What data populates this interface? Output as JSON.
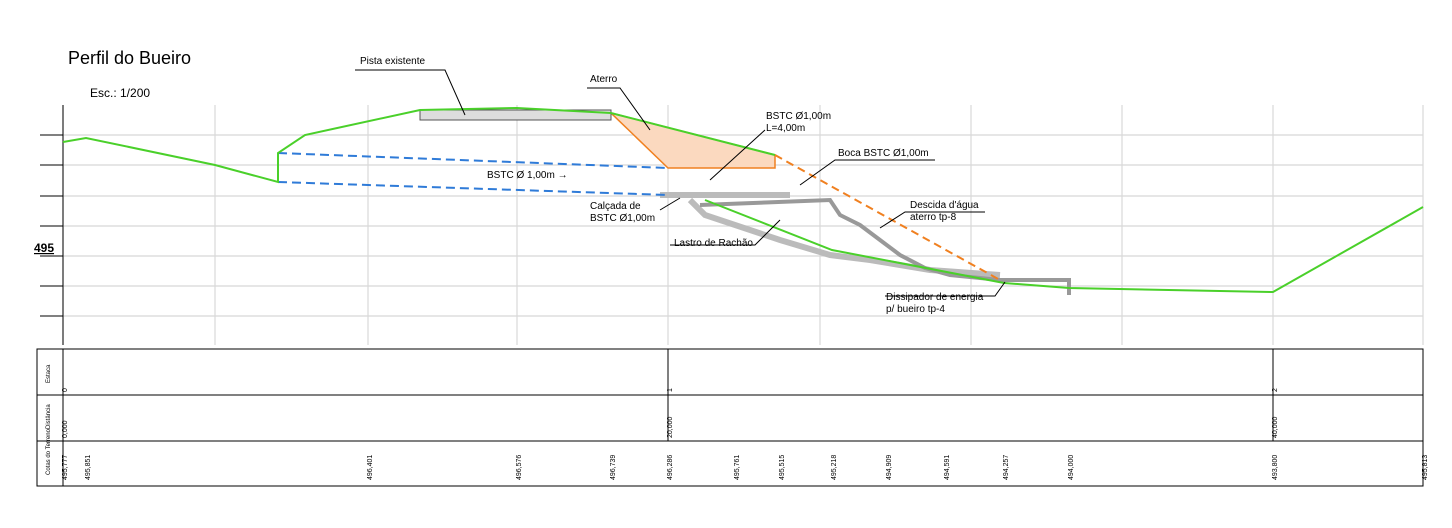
{
  "header": {
    "title": "Perfil do Bueiro",
    "scale": "Esc.: 1/200"
  },
  "annotations": {
    "road": "Pista existente",
    "fill": "Aterro",
    "pipe_top": "BSTC Ø1,00m",
    "pipe_length": "L=4,00m",
    "mouth": "Boca BSTC Ø1,00m",
    "pipe": "BSTC Ø 1,00m →",
    "pavement_1": "Calçada de",
    "pavement_2": "BSTC Ø1,00m",
    "descent_1": "Descida d'água",
    "descent_2": "aterro tp-8",
    "ballast": "Lastro de Rachão",
    "dissipator_1": "Dissipador de energia",
    "dissipator_2": "p/ bueiro tp-4"
  },
  "axis": {
    "elevation": "495"
  },
  "table": {
    "row_labels": [
      "Estaca",
      "Distância",
      "Cotas do Terreno"
    ],
    "stations": [
      "0",
      "1",
      "2"
    ],
    "distances": [
      "0,000",
      "20,000",
      "40,000"
    ],
    "elevations": [
      "495,777",
      "495,851",
      "496,401",
      "496,576",
      "496,739",
      "496,286",
      "495,761",
      "495,515",
      "495,218",
      "494,909",
      "494,591",
      "494,257",
      "494,000",
      "493,800",
      "495,813"
    ]
  }
}
